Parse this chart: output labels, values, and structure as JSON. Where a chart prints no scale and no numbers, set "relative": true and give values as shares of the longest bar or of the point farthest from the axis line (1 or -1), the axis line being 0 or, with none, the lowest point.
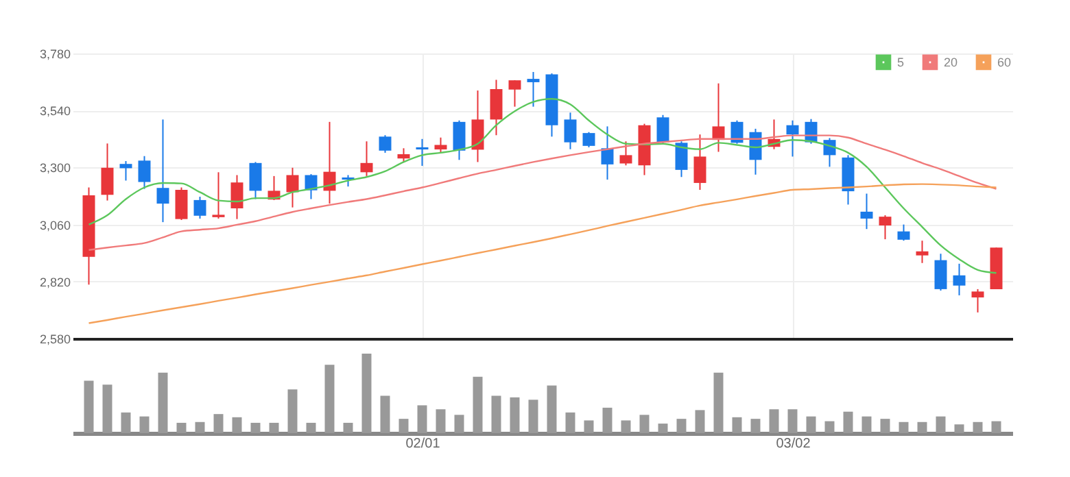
{
  "chart_data": [
    {
      "type": "candlestick",
      "categories": [
        null,
        null,
        null,
        null,
        null,
        null,
        null,
        null,
        null,
        null,
        null,
        null,
        null,
        null,
        null,
        null,
        null,
        null,
        null,
        null,
        null,
        null,
        null,
        null,
        null,
        null,
        null,
        null,
        null,
        null,
        null,
        null,
        null,
        null,
        null,
        null,
        null,
        null,
        null,
        null,
        null,
        null,
        null,
        null,
        null,
        null,
        null,
        null,
        null,
        null
      ],
      "ohlc": [
        [
          2924,
          3216,
          2807,
          3183
        ],
        [
          3185,
          3401,
          3161,
          3299
        ],
        [
          3315,
          3327,
          3245,
          3297
        ],
        [
          3329,
          3348,
          3210,
          3239
        ],
        [
          3214,
          3502,
          3070,
          3148
        ],
        [
          3083,
          3216,
          3079,
          3206
        ],
        [
          3163,
          3177,
          3085,
          3097
        ],
        [
          3091,
          3280,
          3085,
          3101
        ],
        [
          3128,
          3268,
          3083,
          3237
        ],
        [
          3319,
          3323,
          3167,
          3202
        ],
        [
          3165,
          3264,
          3163,
          3202
        ],
        [
          3196,
          3299,
          3132,
          3268
        ],
        [
          3268,
          3272,
          3167,
          3204
        ],
        [
          3202,
          3492,
          3148,
          3282
        ],
        [
          3258,
          3268,
          3220,
          3249
        ],
        [
          3280,
          3410,
          3264,
          3319
        ],
        [
          3430,
          3436,
          3362,
          3371
        ],
        [
          3338,
          3381,
          3322,
          3356
        ],
        [
          3385,
          3420,
          3307,
          3376
        ],
        [
          3376,
          3426,
          3362,
          3395
        ],
        [
          3492,
          3498,
          3332,
          3371
        ],
        [
          3375,
          3624,
          3323,
          3502
        ],
        [
          3502,
          3669,
          3436,
          3630
        ],
        [
          3628,
          3667,
          3556,
          3667
        ],
        [
          3673,
          3702,
          3556,
          3659
        ],
        [
          3692,
          3696,
          3430,
          3478
        ],
        [
          3502,
          3531,
          3377,
          3406
        ],
        [
          3445,
          3449,
          3385,
          3391
        ],
        [
          3381,
          3473,
          3249,
          3313
        ],
        [
          3317,
          3410,
          3309,
          3352
        ],
        [
          3309,
          3484,
          3268,
          3478
        ],
        [
          3511,
          3521,
          3400,
          3406
        ],
        [
          3404,
          3410,
          3260,
          3290
        ],
        [
          3235,
          3439,
          3206,
          3346
        ],
        [
          3416,
          3654,
          3366,
          3473
        ],
        [
          3492,
          3498,
          3400,
          3404
        ],
        [
          3449,
          3463,
          3270,
          3332
        ],
        [
          3387,
          3502,
          3377,
          3420
        ],
        [
          3478,
          3498,
          3346,
          3439
        ],
        [
          3492,
          3504,
          3400,
          3406
        ],
        [
          3416,
          3424,
          3303,
          3352
        ],
        [
          3342,
          3352,
          3144,
          3200
        ],
        [
          3114,
          3190,
          3041,
          3085
        ],
        [
          3056,
          3099,
          2998,
          3093
        ],
        [
          3031,
          3060,
          2992,
          2996
        ],
        [
          2930,
          2992,
          2898,
          2947
        ],
        [
          2910,
          2937,
          2782,
          2788
        ],
        [
          2846,
          2895,
          2762,
          2803
        ],
        [
          2753,
          2788,
          2690,
          2778
        ],
        [
          2788,
          2963,
          2788,
          2963
        ]
      ],
      "colors": [
        "#e8363a",
        "#e8363a",
        "#1a7ae8",
        "#1a7ae8",
        "#1a7ae8",
        "#e8363a",
        "#1a7ae8",
        "#e8363a",
        "#e8363a",
        "#1a7ae8",
        "#e8363a",
        "#e8363a",
        "#1a7ae8",
        "#e8363a",
        "#1a7ae8",
        "#e8363a",
        "#1a7ae8",
        "#e8363a",
        "#1a7ae8",
        "#e8363a",
        "#1a7ae8",
        "#e8363a",
        "#e8363a",
        "#e8363a",
        "#1a7ae8",
        "#1a7ae8",
        "#1a7ae8",
        "#1a7ae8",
        "#1a7ae8",
        "#e8363a",
        "#e8363a",
        "#1a7ae8",
        "#1a7ae8",
        "#e8363a",
        "#e8363a",
        "#1a7ae8",
        "#1a7ae8",
        "#e8363a",
        "#1a7ae8",
        "#1a7ae8",
        "#1a7ae8",
        "#1a7ae8",
        "#1a7ae8",
        "#e8363a",
        "#1a7ae8",
        "#e8363a",
        "#1a7ae8",
        "#1a7ae8",
        "#e8363a",
        "#e8363a"
      ],
      "series": [
        {
          "name": "5",
          "type": "line",
          "color": "#5cc75c",
          "values": [
            3060,
            3099,
            3167,
            3216,
            3235,
            3233,
            3196,
            3161,
            3157,
            3171,
            3171,
            3196,
            3210,
            3225,
            3245,
            3260,
            3284,
            3323,
            3352,
            3362,
            3375,
            3400,
            3478,
            3537,
            3576,
            3589,
            3566,
            3498,
            3439,
            3400,
            3397,
            3400,
            3385,
            3377,
            3404,
            3395,
            3385,
            3400,
            3416,
            3410,
            3391,
            3362,
            3303,
            3216,
            3128,
            3050,
            2972,
            2914,
            2869,
            2856
          ]
        },
        {
          "name": "20",
          "type": "line",
          "color": "#f07a7a",
          "values": [
            2953,
            2963,
            2972,
            2982,
            3006,
            3031,
            3038,
            3044,
            3059,
            3074,
            3094,
            3113,
            3128,
            3142,
            3155,
            3167,
            3183,
            3200,
            3216,
            3235,
            3255,
            3274,
            3290,
            3307,
            3323,
            3338,
            3352,
            3365,
            3377,
            3389,
            3400,
            3407,
            3414,
            3420,
            3420,
            3420,
            3420,
            3428,
            3435,
            3435,
            3435,
            3426,
            3400,
            3375,
            3348,
            3319,
            3293,
            3264,
            3235,
            3210
          ]
        },
        {
          "name": "60",
          "type": "line",
          "color": "#f5a15a",
          "values": [
            2645,
            2658,
            2672,
            2685,
            2699,
            2712,
            2725,
            2739,
            2752,
            2766,
            2779,
            2792,
            2806,
            2819,
            2833,
            2846,
            2862,
            2877,
            2893,
            2908,
            2924,
            2940,
            2955,
            2971,
            2986,
            3002,
            3019,
            3036,
            3054,
            3071,
            3088,
            3105,
            3122,
            3140,
            3153,
            3166,
            3180,
            3193,
            3206,
            3209,
            3213,
            3216,
            3220,
            3225,
            3229,
            3230,
            3228,
            3225,
            3220,
            3216
          ]
        }
      ],
      "ylim": [
        2580,
        3780
      ],
      "yticks": [
        {
          "value": 2580,
          "label": "2,580"
        },
        {
          "value": 2820,
          "label": "2,820"
        },
        {
          "value": 3060,
          "label": "3,060"
        },
        {
          "value": 3300,
          "label": "3,300"
        },
        {
          "value": 3540,
          "label": "3,540"
        },
        {
          "value": 3780,
          "label": "3,780"
        }
      ],
      "grid": true,
      "legend": "top right",
      "tick_labels": "y"
    },
    {
      "type": "bar",
      "relative": true,
      "color": "#999999",
      "categories": [
        null,
        null,
        null,
        null,
        null,
        null,
        null,
        null,
        null,
        null,
        null,
        null,
        null,
        null,
        null,
        null,
        null,
        null,
        "02/01",
        null,
        null,
        null,
        null,
        null,
        null,
        null,
        null,
        null,
        null,
        null,
        null,
        null,
        null,
        null,
        null,
        null,
        null,
        null,
        "03/02",
        null,
        null,
        null,
        null,
        null,
        null,
        null,
        null,
        null,
        null,
        null
      ],
      "values": [
        0.66,
        0.61,
        0.26,
        0.21,
        0.76,
        0.13,
        0.14,
        0.24,
        0.2,
        0.13,
        0.13,
        0.55,
        0.13,
        0.86,
        0.13,
        1,
        0.47,
        0.18,
        0.35,
        0.3,
        0.23,
        0.71,
        0.47,
        0.45,
        0.42,
        0.6,
        0.26,
        0.16,
        0.32,
        0.16,
        0.23,
        0.12,
        0.18,
        0.29,
        0.76,
        0.2,
        0.18,
        0.3,
        0.3,
        0.21,
        0.15,
        0.27,
        0.21,
        0.18,
        0.14,
        0.14,
        0.21,
        0.11,
        0.14,
        0.15
      ],
      "tick_labels": "x"
    }
  ]
}
